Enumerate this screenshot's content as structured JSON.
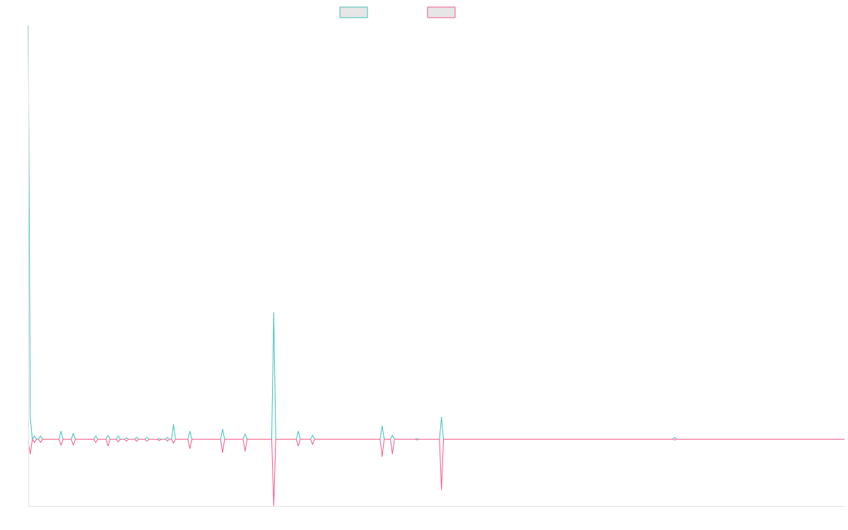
{
  "colors": {
    "teal": "#3fbfb7",
    "pink": "#ef5b85",
    "legend_fill": "#e6e6e6",
    "axis": "#e2e2e2"
  },
  "chart_data": {
    "type": "area",
    "title": "",
    "xlabel": "",
    "ylabel": "",
    "grid": false,
    "legend_position": "top-center",
    "ylim": [
      -100,
      620
    ],
    "x_count": 400,
    "series": [
      {
        "color": "#3fbfb7",
        "baseline": 0,
        "points": [
          [
            0,
            620
          ],
          [
            1,
            32
          ],
          [
            3,
            5
          ],
          [
            6,
            5
          ],
          [
            16,
            12
          ],
          [
            22,
            9
          ],
          [
            33,
            5
          ],
          [
            39,
            6
          ],
          [
            44,
            5
          ],
          [
            48,
            2
          ],
          [
            53,
            3
          ],
          [
            58,
            3
          ],
          [
            64,
            1
          ],
          [
            68,
            3
          ],
          [
            71,
            22
          ],
          [
            79,
            12
          ],
          [
            95,
            15
          ],
          [
            106,
            8
          ],
          [
            120,
            190
          ],
          [
            132,
            12
          ],
          [
            139,
            6
          ],
          [
            173,
            20
          ],
          [
            178,
            6
          ],
          [
            190,
            1
          ],
          [
            202,
            33
          ],
          [
            316,
            3
          ]
        ]
      },
      {
        "color": "#ef5b85",
        "baseline": 0,
        "points": [
          [
            0,
            -5
          ],
          [
            1,
            -22
          ],
          [
            3,
            -5
          ],
          [
            6,
            -5
          ],
          [
            16,
            -9
          ],
          [
            22,
            -9
          ],
          [
            33,
            -5
          ],
          [
            39,
            -10
          ],
          [
            44,
            -4
          ],
          [
            48,
            -3
          ],
          [
            53,
            -3
          ],
          [
            58,
            -3
          ],
          [
            64,
            -2
          ],
          [
            68,
            -3
          ],
          [
            71,
            -6
          ],
          [
            79,
            -14
          ],
          [
            95,
            -20
          ],
          [
            106,
            -18
          ],
          [
            120,
            -100
          ],
          [
            132,
            -10
          ],
          [
            139,
            -8
          ],
          [
            173,
            -26
          ],
          [
            178,
            -22
          ],
          [
            190,
            -1
          ],
          [
            202,
            -76
          ],
          [
            316,
            -1
          ]
        ]
      }
    ]
  }
}
